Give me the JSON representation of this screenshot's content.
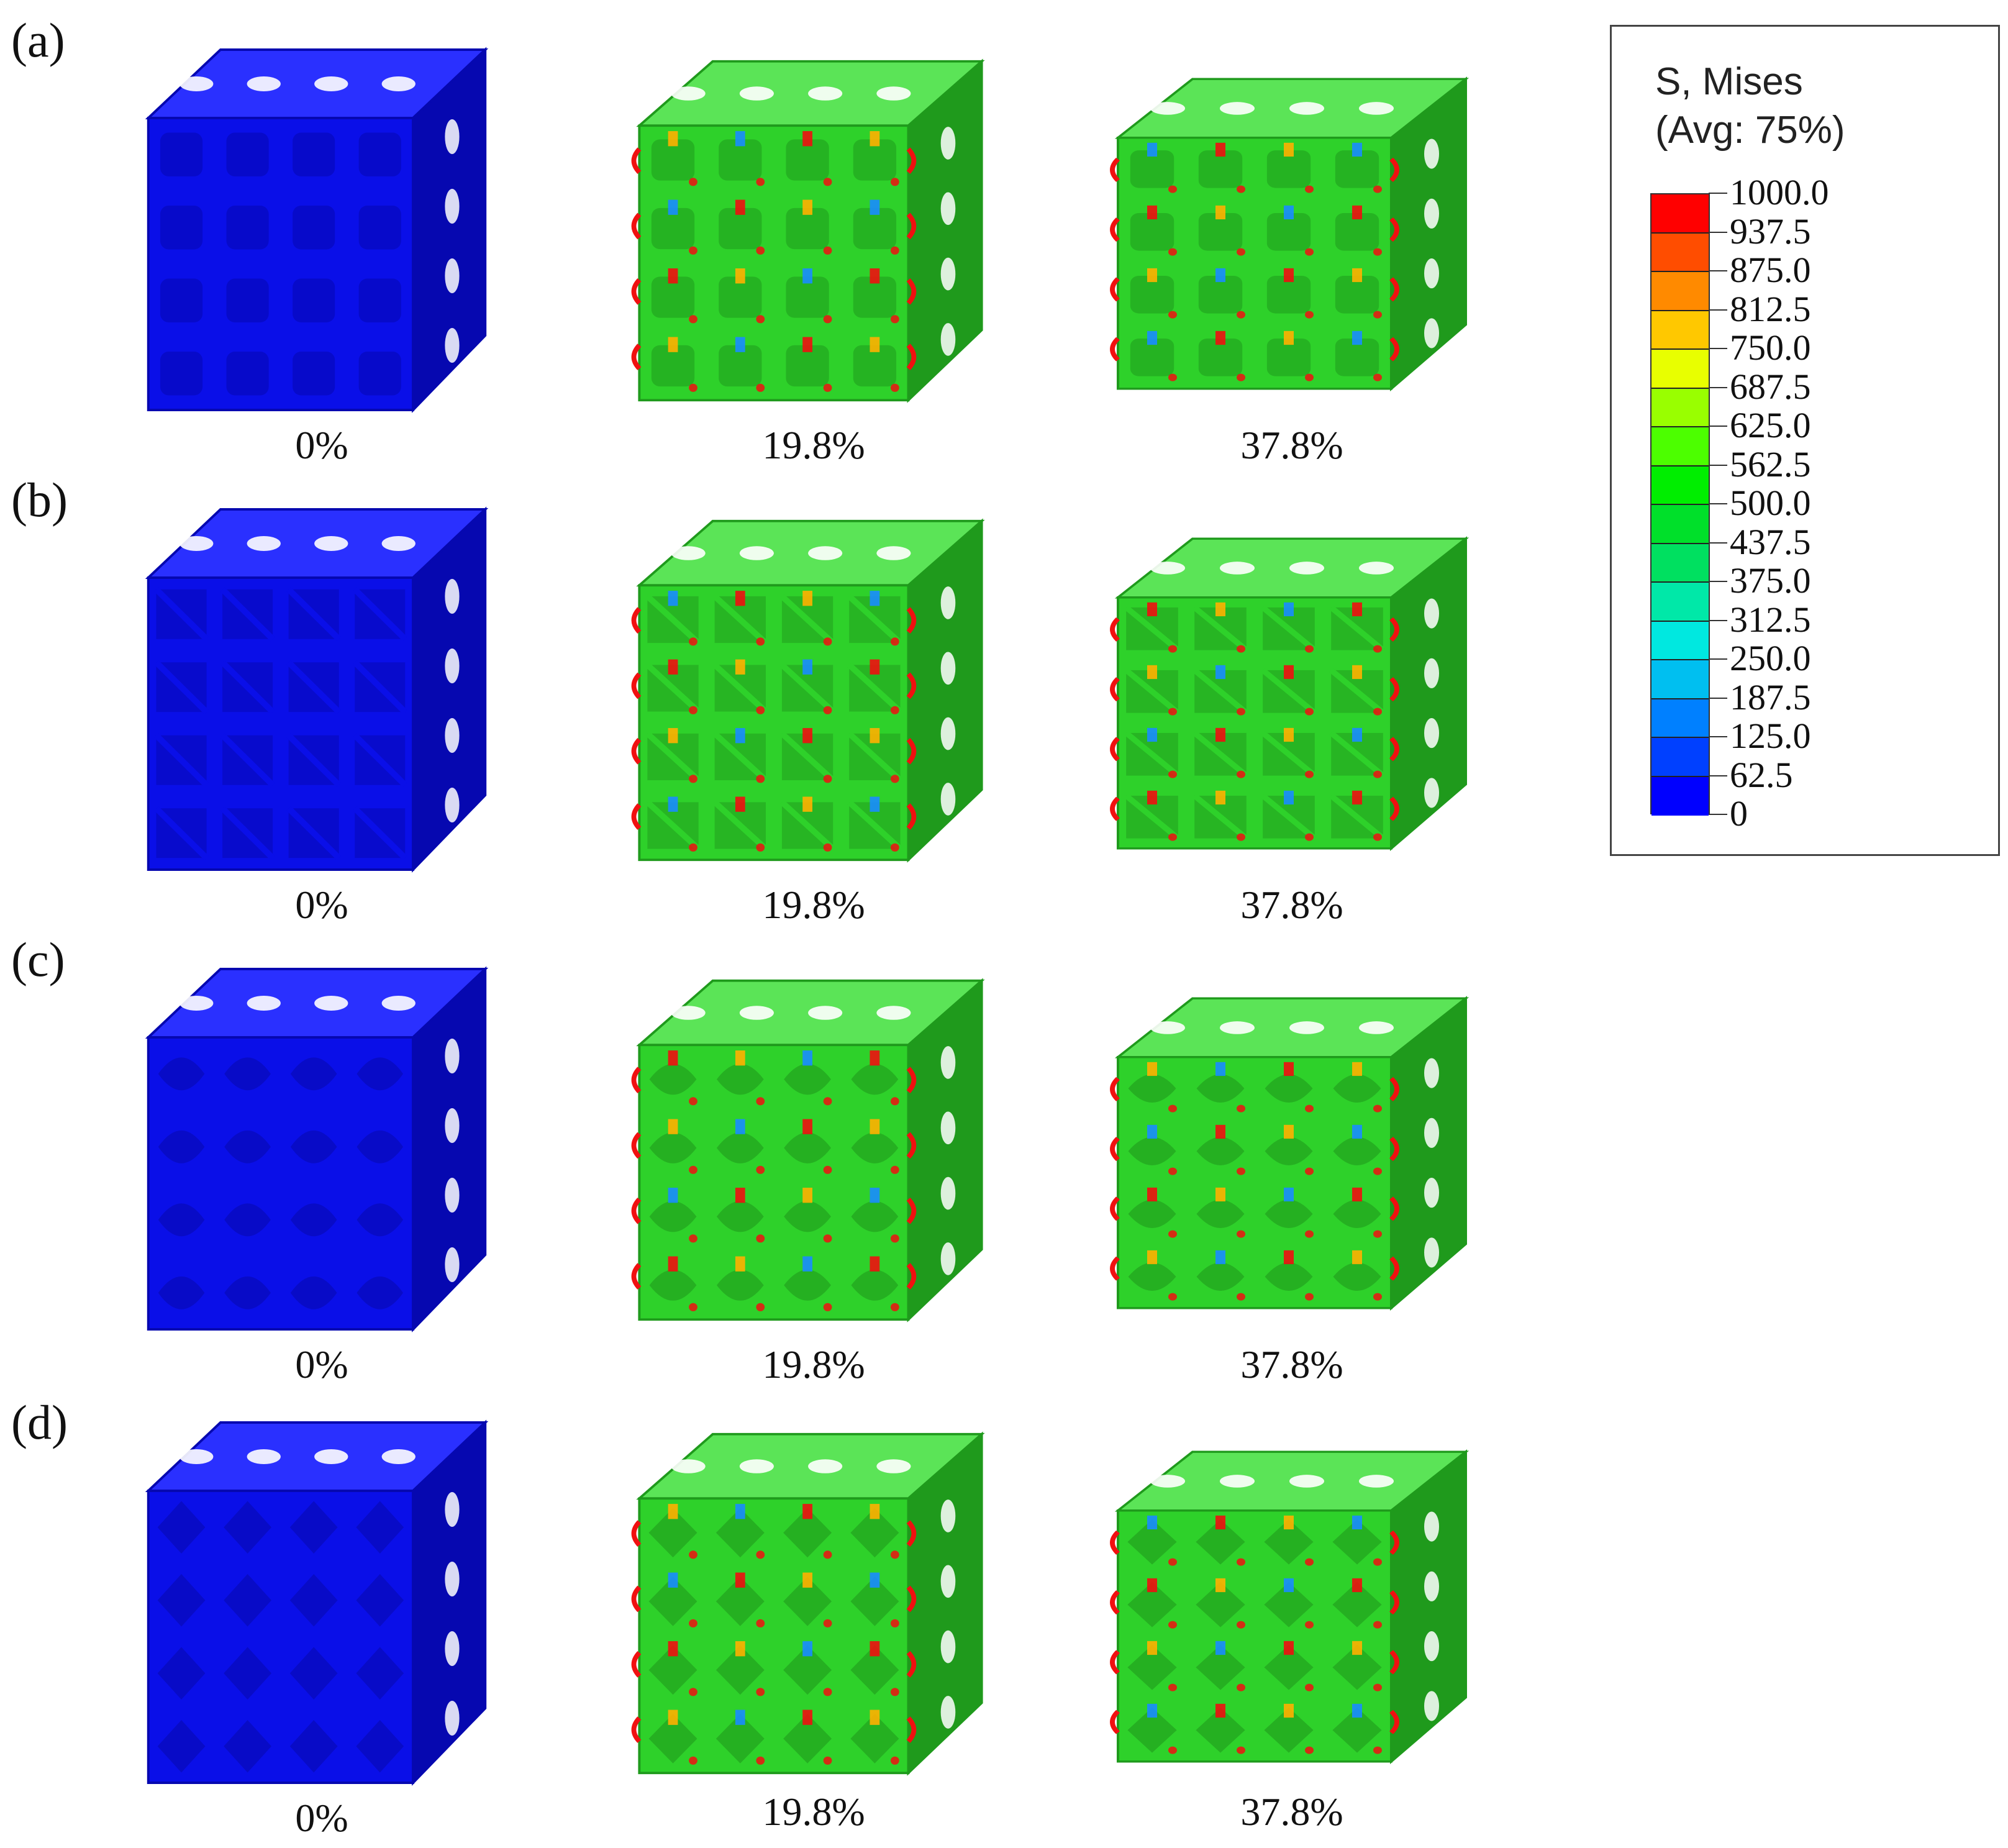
{
  "rows": [
    {
      "label": "(a)",
      "strains": [
        "0%",
        "19.8%",
        "37.8%"
      ]
    },
    {
      "label": "(b)",
      "strains": [
        "0%",
        "19.8%",
        "37.8%"
      ]
    },
    {
      "label": "(c)",
      "strains": [
        "0%",
        "19.8%",
        "37.8%"
      ]
    },
    {
      "label": "(d)",
      "strains": [
        "0%",
        "19.8%",
        "37.8%"
      ]
    }
  ],
  "legend": {
    "title_line1": "S, Mises",
    "title_line2": "(Avg: 75%)",
    "values": [
      "1000.0",
      "937.5",
      "875.0",
      "812.5",
      "750.0",
      "687.5",
      "625.0",
      "562.5",
      "500.0",
      "437.5",
      "375.0",
      "312.5",
      "250.0",
      "187.5",
      "125.0",
      "62.5",
      "0"
    ],
    "colors": [
      "#ff0000",
      "#ff4d00",
      "#ff8a00",
      "#ffc800",
      "#e8ff00",
      "#99ff00",
      "#4cff00",
      "#00ee00",
      "#00e02a",
      "#00e060",
      "#00e8a8",
      "#00e8e0",
      "#00bff0",
      "#0080ff",
      "#0040ff",
      "#0000ff"
    ]
  },
  "colors": {
    "undeformed": "#0a0fe8",
    "deformed": "#2ed12a",
    "hotspot": "#f01010",
    "warm": "#ffb000",
    "cool": "#1a8cff"
  }
}
